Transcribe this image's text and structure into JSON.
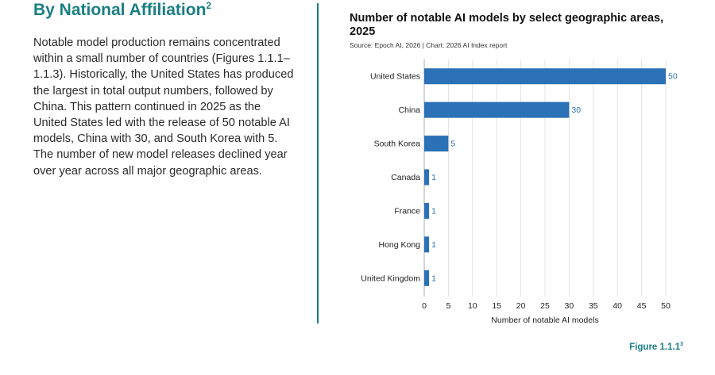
{
  "section": {
    "heading": "By National Affiliation",
    "heading_footnote": "2",
    "body": "Notable model production remains concentrated within a small number of countries (Figures 1.1.1–1.1.3). Historically, the United States has produced the largest in total output numbers, followed by China. This pattern continued in 2025 as the United States led with the release of 50 notable AI models, China with 30, and South Korea with 5. The number of new model releases declined year over year across all major geographic areas."
  },
  "figure": {
    "label": "Figure 1.1.1",
    "footnote": "3"
  },
  "colors": {
    "accent": "#1a7e82",
    "bar": "#2a72b5",
    "grid": "#dcdcdc"
  },
  "chart_data": {
    "type": "bar",
    "orientation": "horizontal",
    "title": "Number of notable AI models by select geographic areas, 2025",
    "source": "Source: Epoch AI, 2026 | Chart: 2026 AI Index report",
    "categories": [
      "United States",
      "China",
      "South Korea",
      "Canada",
      "France",
      "Hong Kong",
      "United Kingdom"
    ],
    "values": [
      50,
      30,
      5,
      1,
      1,
      1,
      1
    ],
    "xlabel": "Number of notable AI models",
    "ylabel": "",
    "xlim": [
      0,
      50
    ],
    "xticks": [
      0,
      5,
      10,
      15,
      20,
      25,
      30,
      35,
      40,
      45,
      50
    ],
    "grid": true,
    "data_labels": true
  }
}
